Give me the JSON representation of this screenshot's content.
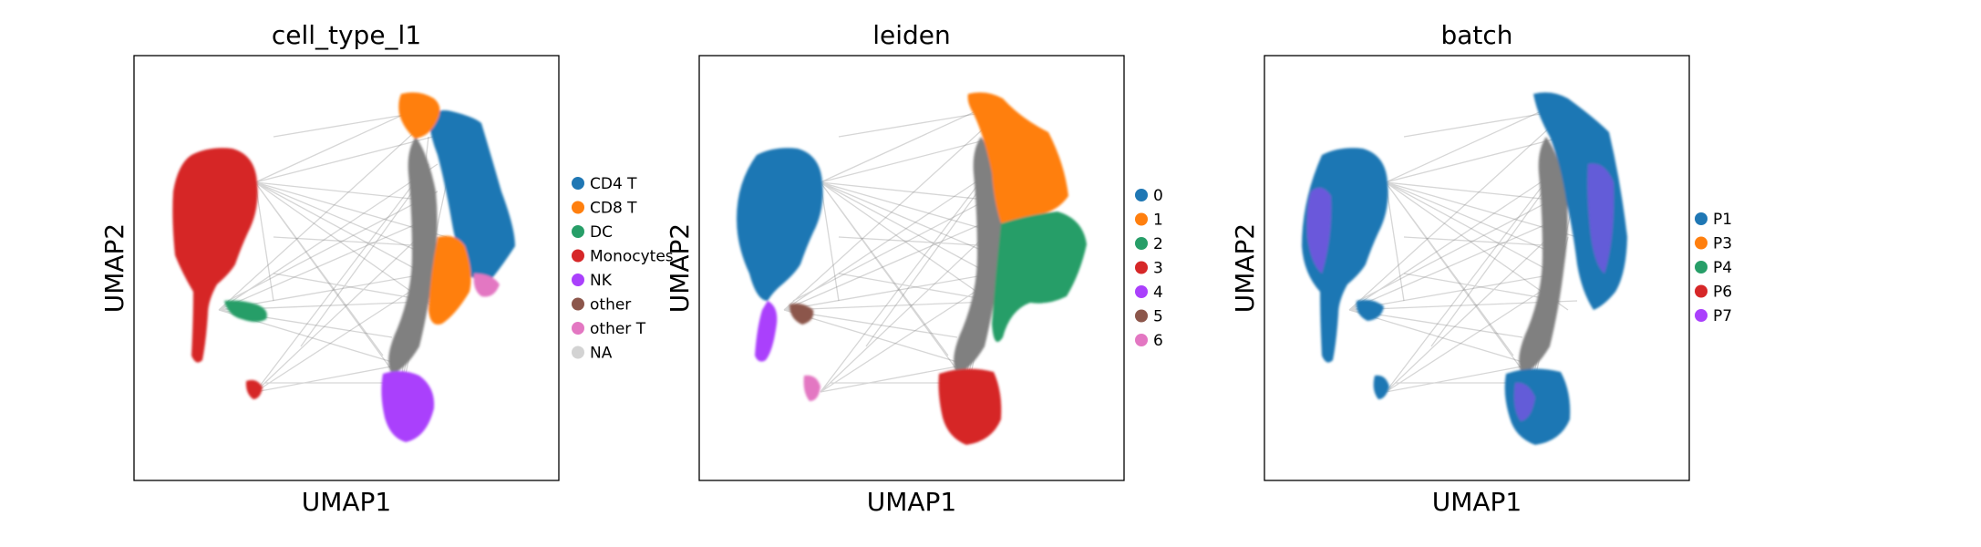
{
  "figure": {
    "background": "#ffffff",
    "edge_color": "#808080"
  },
  "chart_data": [
    {
      "type": "scatter",
      "title": "cell_type_l1",
      "xlabel": "UMAP1",
      "ylabel": "UMAP2",
      "grid": false,
      "legend": "right",
      "legend_entries": [
        {
          "label": "CD4 T",
          "color": "#1f77b4"
        },
        {
          "label": "CD8 T",
          "color": "#ff7f0e"
        },
        {
          "label": "DC",
          "color": "#279e68"
        },
        {
          "label": "Monocytes",
          "color": "#d62728"
        },
        {
          "label": "NK",
          "color": "#aa40fc"
        },
        {
          "label": "other",
          "color": "#8c564b"
        },
        {
          "label": "other T",
          "color": "#e377c2"
        },
        {
          "label": "NA",
          "color": "#d3d3d3"
        }
      ]
    },
    {
      "type": "scatter",
      "title": "leiden",
      "xlabel": "UMAP1",
      "ylabel": "UMAP2",
      "grid": false,
      "legend": "right",
      "legend_entries": [
        {
          "label": "0",
          "color": "#1f77b4"
        },
        {
          "label": "1",
          "color": "#ff7f0e"
        },
        {
          "label": "2",
          "color": "#279e68"
        },
        {
          "label": "3",
          "color": "#d62728"
        },
        {
          "label": "4",
          "color": "#aa40fc"
        },
        {
          "label": "5",
          "color": "#8c564b"
        },
        {
          "label": "6",
          "color": "#e377c2"
        }
      ]
    },
    {
      "type": "scatter",
      "title": "batch",
      "xlabel": "UMAP1",
      "ylabel": "UMAP2",
      "grid": false,
      "legend": "right",
      "legend_entries": [
        {
          "label": "P1",
          "color": "#1f77b4"
        },
        {
          "label": "P3",
          "color": "#ff7f0e"
        },
        {
          "label": "P4",
          "color": "#279e68"
        },
        {
          "label": "P6",
          "color": "#d62728"
        },
        {
          "label": "P7",
          "color": "#aa40fc"
        }
      ]
    }
  ]
}
